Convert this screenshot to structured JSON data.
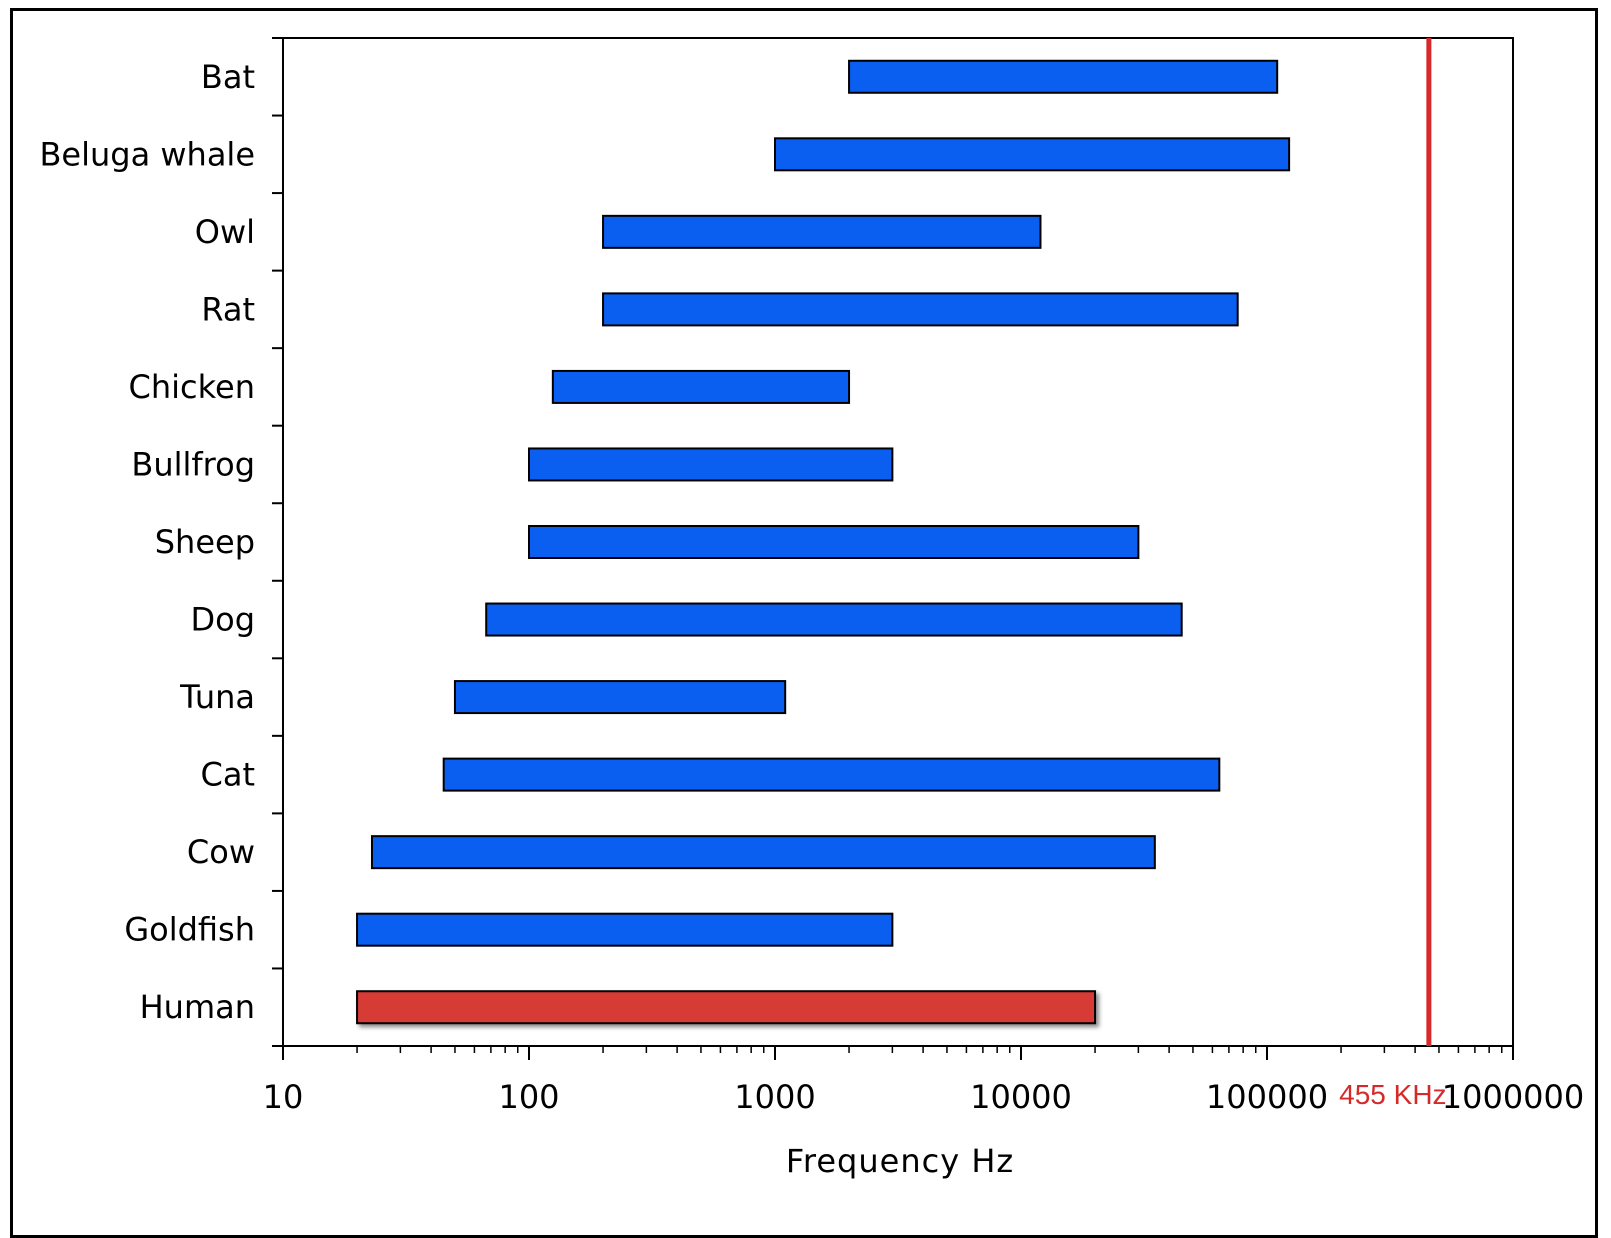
{
  "colors": {
    "bar": "#0a5ff0",
    "highlight": "#d73a34",
    "marker": "#d62a2a",
    "axis": "#000000"
  },
  "chart_data": {
    "type": "bar",
    "orientation": "horizontal-range",
    "xscale": "log",
    "xlim": [
      10,
      1000000
    ],
    "xlabel": "Frequency  Hz",
    "xticks": [
      "10",
      "100",
      "1000",
      "10000",
      "100000",
      "1000000"
    ],
    "categories": [
      "Bat",
      "Beluga whale",
      "Owl",
      "Rat",
      "Chicken",
      "Bullfrog",
      "Sheep",
      "Dog",
      "Tuna",
      "Cat",
      "Cow",
      "Goldfish",
      "Human"
    ],
    "ranges": [
      {
        "name": "Bat",
        "low": 2000,
        "high": 110000,
        "highlight": false
      },
      {
        "name": "Beluga whale",
        "low": 1000,
        "high": 123000,
        "highlight": false
      },
      {
        "name": "Owl",
        "low": 200,
        "high": 12000,
        "highlight": false
      },
      {
        "name": "Rat",
        "low": 200,
        "high": 76000,
        "highlight": false
      },
      {
        "name": "Chicken",
        "low": 125,
        "high": 2000,
        "highlight": false
      },
      {
        "name": "Bullfrog",
        "low": 100,
        "high": 3000,
        "highlight": false
      },
      {
        "name": "Sheep",
        "low": 100,
        "high": 30000,
        "highlight": false
      },
      {
        "name": "Dog",
        "low": 67,
        "high": 45000,
        "highlight": false
      },
      {
        "name": "Tuna",
        "low": 50,
        "high": 1100,
        "highlight": false
      },
      {
        "name": "Cat",
        "low": 45,
        "high": 64000,
        "highlight": false
      },
      {
        "name": "Cow",
        "low": 23,
        "high": 35000,
        "highlight": false
      },
      {
        "name": "Goldfish",
        "low": 20,
        "high": 3000,
        "highlight": false
      },
      {
        "name": "Human",
        "low": 20,
        "high": 20000,
        "highlight": true
      }
    ],
    "marker": {
      "value": 455000,
      "label": "455 KHz"
    },
    "grid": false,
    "legend": "none"
  }
}
